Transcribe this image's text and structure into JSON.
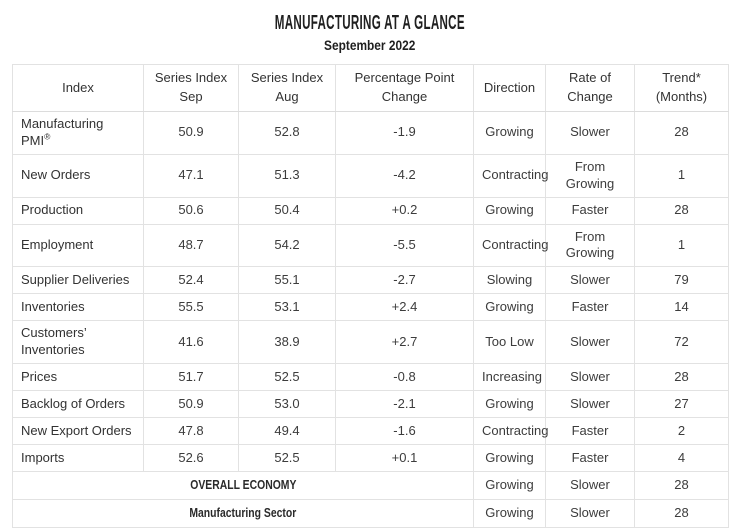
{
  "page": {
    "title": "MANUFACTURING AT A GLANCE",
    "subtitle": "September 2022"
  },
  "colors": {
    "background": "#ffffff",
    "border": "#e2e2e2",
    "body_text": "#3c3c3c",
    "title_text": "#1f1f1f"
  },
  "table": {
    "headers": [
      "Index",
      "Series Index\nSep",
      "Series Index\nAug",
      "Percentage Point\nChange",
      "Direction",
      "Rate of\nChange",
      "Trend*\n(Months)"
    ],
    "rows": [
      {
        "index": "Manufacturing PMI",
        "index_suffix": "®",
        "sep": "50.9",
        "aug": "52.8",
        "change": "-1.9",
        "direction": "Growing",
        "rate": "Slower",
        "trend": "28"
      },
      {
        "index": "New Orders",
        "sep": "47.1",
        "aug": "51.3",
        "change": "-4.2",
        "direction": "Contracting",
        "rate": "From Growing",
        "trend": "1"
      },
      {
        "index": "Production",
        "sep": "50.6",
        "aug": "50.4",
        "change": "+0.2",
        "direction": "Growing",
        "rate": "Faster",
        "trend": "28"
      },
      {
        "index": "Employment",
        "sep": "48.7",
        "aug": "54.2",
        "change": "-5.5",
        "direction": "Contracting",
        "rate": "From Growing",
        "trend": "1"
      },
      {
        "index": "Supplier Deliveries",
        "sep": "52.4",
        "aug": "55.1",
        "change": "-2.7",
        "direction": "Slowing",
        "rate": "Slower",
        "trend": "79"
      },
      {
        "index": "Inventories",
        "sep": "55.5",
        "aug": "53.1",
        "change": "+2.4",
        "direction": "Growing",
        "rate": "Faster",
        "trend": "14"
      },
      {
        "index": "Customers’ Inventories",
        "sep": "41.6",
        "aug": "38.9",
        "change": "+2.7",
        "direction": "Too Low",
        "rate": "Slower",
        "trend": "72"
      },
      {
        "index": "Prices",
        "sep": "51.7",
        "aug": "52.5",
        "change": "-0.8",
        "direction": "Increasing",
        "rate": "Slower",
        "trend": "28"
      },
      {
        "index": "Backlog of Orders",
        "sep": "50.9",
        "aug": "53.0",
        "change": "-2.1",
        "direction": "Growing",
        "rate": "Slower",
        "trend": "27"
      },
      {
        "index": "New Export Orders",
        "sep": "47.8",
        "aug": "49.4",
        "change": "-1.6",
        "direction": "Contracting",
        "rate": "Faster",
        "trend": "2"
      },
      {
        "index": "Imports",
        "sep": "52.6",
        "aug": "52.5",
        "change": "+0.1",
        "direction": "Growing",
        "rate": "Faster",
        "trend": "4"
      }
    ],
    "summary_rows": [
      {
        "label": "OVERALL ECONOMY",
        "direction": "Growing",
        "rate": "Slower",
        "trend": "28"
      },
      {
        "label": "Manufacturing Sector",
        "direction": "Growing",
        "rate": "Slower",
        "trend": "28"
      }
    ]
  }
}
